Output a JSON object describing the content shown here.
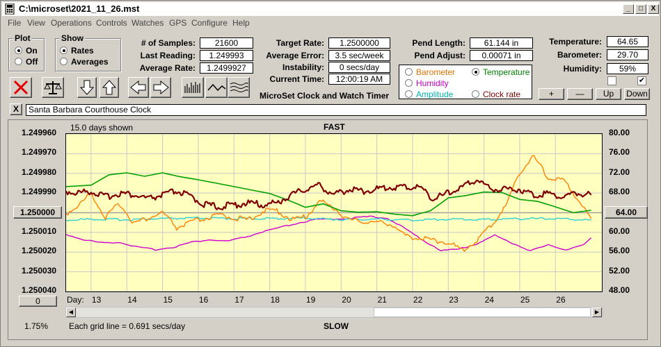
{
  "window": {
    "title": "C:\\microset\\2021_11_26.mst",
    "min_label": "_",
    "max_label": "□",
    "close_label": "X"
  },
  "menu": [
    "File",
    "View",
    "Operations",
    "Controls",
    "Watches",
    "GPS",
    "Configure",
    "Help"
  ],
  "plot_group": {
    "title": "Plot",
    "on": "On",
    "off": "Off",
    "selected": "On"
  },
  "show_group": {
    "title": "Show",
    "rates": "Rates",
    "averages": "Averages",
    "selected": "Rates"
  },
  "stats": {
    "samples_label": "# of Samples:",
    "samples": "21600",
    "last_reading_label": "Last Reading:",
    "last_reading": "1.249993",
    "average_rate_label": "Average Rate:",
    "average_rate": "1.2499927",
    "target_rate_label": "Target Rate:",
    "target_rate": "1.2500000",
    "average_error_label": "Average Error:",
    "average_error": "3.5 sec/week",
    "instability_label": "Instability:",
    "instability": "0 secs/day",
    "current_time_label": "Current Time:",
    "current_time": "12:00:19 AM",
    "pend_length_label": "Pend Length:",
    "pend_length": "61.144 in",
    "pend_adjust_label": "Pend Adjust:",
    "pend_adjust": "0.00071 in",
    "temperature_label": "Temperature:",
    "temperature": "64.65",
    "barometer_label": "Barometer:",
    "barometer": "29.70",
    "humidity_label": "Humidity:",
    "humidity": "59%"
  },
  "app_caption": "MicroSet Clock and Watch Timer",
  "overlay_options": [
    {
      "label": "Barometer",
      "color": "#e07000",
      "selected": false
    },
    {
      "label": "Temperature",
      "color": "#008000",
      "selected": true
    },
    {
      "label": "Humidity",
      "color": "#c000c0",
      "selected": false
    },
    {
      "label": "Amplitude",
      "color": "#00b0b0",
      "selected": false
    },
    {
      "label": "Clock rate",
      "color": "#800000",
      "selected": false
    }
  ],
  "checkbox_states": [
    false,
    true
  ],
  "scale_buttons": {
    "plus": "+",
    "minus": "—",
    "up": "Up",
    "down": "Down"
  },
  "clock_name": "Santa Barbara Courthouse Clock",
  "clear_name_label": "X",
  "toolbar_icons": [
    "stop-x-icon",
    "balance-scale-icon",
    "down-arrow-icon",
    "up-arrow-icon",
    "left-arrow-icon",
    "right-arrow-icon",
    "samples-bars-icon",
    "smooth-wave-icon",
    "multi-wave-icon"
  ],
  "chart_header": {
    "days_shown": "15.0 days shown",
    "fast": "FAST",
    "slow": "SLOW"
  },
  "chart_footer": {
    "grid_note": "Each grid line = 0.691 secs/day",
    "percent": "1.75%",
    "day_label": "Day:",
    "zero_button": "0"
  },
  "center_rate_button": "1.250000",
  "center_temp_button": "64.00",
  "chart_data": {
    "type": "line",
    "x_label": "Day:",
    "x_ticks": [
      "13",
      "14",
      "15",
      "16",
      "17",
      "18",
      "19",
      "20",
      "21",
      "22",
      "23",
      "24",
      "25",
      "26"
    ],
    "xlim": [
      12.3,
      27.3
    ],
    "left_axis": {
      "ticks": [
        "1.249960",
        "1.249970",
        "1.249980",
        "1.249990",
        "1.250000",
        "1.250010",
        "1.250020",
        "1.250030",
        "1.250040"
      ],
      "ylim": [
        1.24996,
        1.25004
      ]
    },
    "right_axis": {
      "ticks": [
        "80.00",
        "76.00",
        "72.00",
        "68.00",
        "64.00",
        "60.00",
        "56.00",
        "52.00",
        "48.00"
      ],
      "ylim": [
        48,
        80
      ]
    },
    "series": [
      {
        "name": "Temperature",
        "color": "#00a000",
        "axis": "right",
        "x": [
          12.3,
          13,
          13.5,
          14,
          14.5,
          15,
          15.5,
          16,
          16.5,
          17,
          17.5,
          18,
          18.5,
          19,
          19.5,
          20,
          20.5,
          21,
          21.5,
          22,
          22.5,
          23,
          23.5,
          24,
          24.5,
          25,
          25.5,
          26,
          26.5,
          27
        ],
        "y": [
          69.3,
          69.6,
          71.7,
          72.1,
          71.4,
          72.1,
          71.3,
          70.7,
          70.0,
          69.3,
          68.6,
          67.9,
          66.6,
          65.1,
          65.8,
          64.4,
          64.1,
          64.2,
          63.7,
          63.4,
          64.4,
          67.0,
          67.5,
          68.2,
          68.1,
          66.7,
          66.3,
          65.2,
          64.0,
          64.5
        ]
      },
      {
        "name": "Clock rate",
        "color": "#800000",
        "axis": "left",
        "x": [
          12.3,
          12.6,
          13,
          13.4,
          13.8,
          14.2,
          14.6,
          15,
          15.4,
          15.8,
          16.2,
          16.6,
          17,
          17.4,
          17.8,
          18.2,
          18.6,
          19,
          19.4,
          19.8,
          20.2,
          20.6,
          21,
          21.4,
          21.8,
          22.2,
          22.6,
          23,
          23.4,
          23.8,
          24.2,
          24.6,
          25,
          25.4,
          25.8,
          26.2,
          26.6,
          27
        ],
        "y": [
          1.249989,
          1.24999,
          1.249989,
          1.249992,
          1.24999,
          1.249991,
          1.249993,
          1.249991,
          1.249989,
          1.249992,
          1.249996,
          1.249997,
          1.249996,
          1.249995,
          1.249996,
          1.249995,
          1.249991,
          1.249988,
          1.249986,
          1.249991,
          1.249988,
          1.249989,
          1.249988,
          1.249987,
          1.249987,
          1.249987,
          1.249993,
          1.24999,
          1.249987,
          1.249983,
          1.249988,
          1.249988,
          1.249988,
          1.249991,
          1.24999,
          1.249992,
          1.24999,
          1.249991
        ]
      },
      {
        "name": "Barometer",
        "color": "#ff8000",
        "axis": "right",
        "x": [
          12.3,
          12.7,
          13,
          13.4,
          13.8,
          14.2,
          14.6,
          15,
          15.4,
          15.8,
          16.2,
          16.6,
          17,
          17.4,
          17.8,
          18.2,
          18.6,
          19,
          19.4,
          19.8,
          20.2,
          20.6,
          21,
          21.4,
          21.8,
          22.2,
          22.6,
          23,
          23.4,
          23.8,
          24.2,
          24.6,
          25,
          25.4,
          25.8,
          26.2,
          26.6,
          27
        ],
        "y": [
          63.8,
          65.8,
          68.0,
          63.0,
          65.9,
          61.9,
          62.9,
          64.0,
          60.9,
          62.1,
          62.8,
          63.5,
          63.0,
          62.5,
          64.3,
          64.5,
          62.6,
          63.1,
          66.4,
          65.0,
          62.5,
          62.3,
          62.0,
          61.8,
          59.2,
          58.9,
          58.4,
          58.0,
          56.3,
          58.4,
          61.4,
          65.2,
          72.3,
          75.4,
          71.0,
          70.7,
          67.1,
          62.8
        ]
      },
      {
        "name": "Amplitude",
        "color": "#30d0d0",
        "axis": "right",
        "x": [
          12.3,
          13,
          14,
          15,
          16,
          17,
          18,
          19,
          20,
          21,
          22,
          23,
          24,
          25,
          26,
          27
        ],
        "y": [
          62.5,
          62.7,
          62.6,
          62.8,
          62.9,
          62.8,
          62.8,
          62.9,
          62.6,
          62.7,
          62.5,
          62.7,
          62.6,
          62.8,
          62.8,
          62.5
        ]
      },
      {
        "name": "Humidity",
        "color": "#d000d0",
        "axis": "right",
        "x": [
          12.3,
          12.8,
          13.3,
          13.8,
          14.3,
          14.8,
          15.3,
          15.8,
          16.3,
          16.8,
          17.3,
          17.8,
          18.3,
          18.8,
          19.3,
          19.8,
          20.3,
          20.8,
          21.3,
          21.8,
          22.3,
          22.8,
          23.3,
          23.8,
          24.3,
          24.8,
          25.3,
          25.8,
          26.3,
          26.8,
          27
        ],
        "y": [
          59.6,
          58.5,
          57.9,
          58.0,
          57.0,
          56.5,
          57.0,
          58.0,
          58.5,
          58.2,
          59.0,
          60.1,
          61.0,
          61.9,
          62.6,
          62.7,
          62.9,
          63.2,
          62.9,
          60.7,
          58.4,
          56.3,
          56.6,
          57.7,
          59.4,
          57.8,
          56.3,
          57.4,
          56.5,
          57.5,
          58.9
        ]
      }
    ]
  }
}
